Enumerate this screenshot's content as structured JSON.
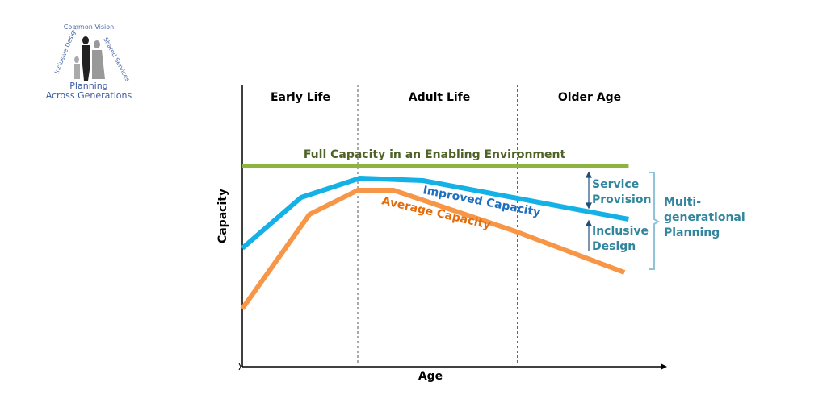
{
  "logo": {
    "top": "Common Vision",
    "left": "Inclusive Design",
    "right": "Shared Services",
    "line1": "Planning",
    "line2": "Across Generations"
  },
  "chart_data": {
    "type": "line",
    "xlabel": "Age",
    "ylabel": "Capacity",
    "xlim": [
      0,
      100
    ],
    "ylim": [
      0,
      100
    ],
    "phases": [
      {
        "label": "Early Life",
        "start": 0,
        "end": 27.5
      },
      {
        "label": "Adult Life",
        "start": 27.5,
        "end": 65.5
      },
      {
        "label": "Older Age",
        "start": 65.5,
        "end": 100
      }
    ],
    "series": [
      {
        "name": "Full Capacity in an Enabling Environment",
        "color": "#8db43e",
        "label_color": "#4f6228",
        "points": [
          [
            0,
            83
          ],
          [
            92,
            83
          ]
        ]
      },
      {
        "name": "Improved Capacity",
        "color": "#14b1e7",
        "label_color": "#1f6fbf",
        "points": [
          [
            0,
            49
          ],
          [
            14,
            70
          ],
          [
            28,
            78
          ],
          [
            43,
            77
          ],
          [
            92,
            61
          ]
        ]
      },
      {
        "name": "Average Capacity",
        "color": "#f79646",
        "label_color": "#e46c0a",
        "points": [
          [
            0,
            24
          ],
          [
            16,
            63
          ],
          [
            27.5,
            73
          ],
          [
            36,
            73
          ],
          [
            65,
            56
          ],
          [
            91,
            39
          ]
        ]
      }
    ],
    "annotations": {
      "service": [
        "Service",
        "Provision"
      ],
      "inclusive": [
        "Inclusive",
        "Design"
      ],
      "multi": [
        "Multi-",
        "generational",
        "Planning"
      ],
      "color": "#31859c"
    }
  }
}
